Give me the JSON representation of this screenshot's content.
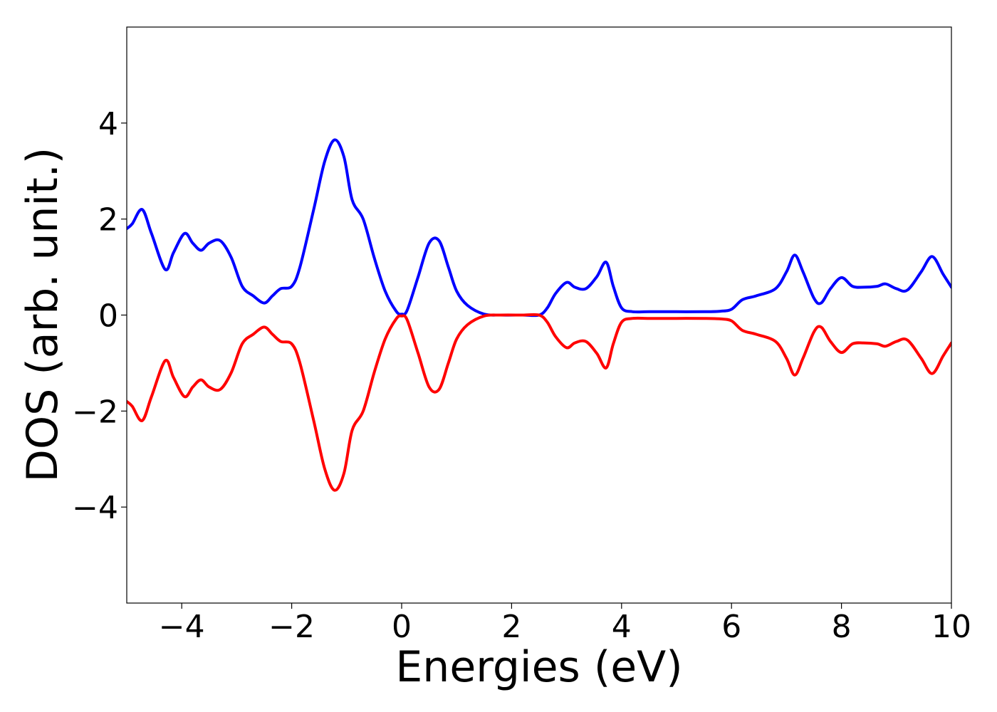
{
  "chart_data": {
    "type": "line",
    "title": "",
    "xlabel": "Energies (eV)",
    "ylabel": "DOS (arb. unit.)",
    "xlim": [
      -5,
      10
    ],
    "ylim": [
      -6,
      6
    ],
    "xticks": [
      -4,
      -2,
      0,
      2,
      4,
      6,
      8,
      10
    ],
    "xtick_labels": [
      "−4",
      "−2",
      "0",
      "2",
      "4",
      "6",
      "8",
      "10"
    ],
    "yticks": [
      -4,
      -2,
      0,
      2,
      4
    ],
    "ytick_labels": [
      "−4",
      "−2",
      "0",
      "2",
      "4"
    ],
    "grid": false,
    "legend": "none",
    "series": [
      {
        "color": "#0000ff",
        "x": [
          -5.0,
          -4.9,
          -4.72,
          -4.55,
          -4.3,
          -4.15,
          -3.95,
          -3.8,
          -3.65,
          -3.5,
          -3.3,
          -3.1,
          -2.9,
          -2.7,
          -2.5,
          -2.35,
          -2.2,
          -2.0,
          -1.85,
          -1.6,
          -1.4,
          -1.22,
          -1.05,
          -0.9,
          -0.7,
          -0.5,
          -0.3,
          -0.1,
          0.0,
          0.1,
          0.3,
          0.5,
          0.68,
          0.85,
          1.0,
          1.2,
          1.5,
          1.8,
          2.2,
          2.5,
          2.65,
          2.8,
          3.0,
          3.15,
          3.35,
          3.55,
          3.72,
          3.85,
          4.0,
          4.2,
          4.5,
          5.0,
          5.5,
          5.8,
          6.0,
          6.2,
          6.45,
          6.8,
          7.0,
          7.15,
          7.3,
          7.5,
          7.63,
          7.8,
          8.0,
          8.2,
          8.4,
          8.65,
          8.8,
          9.0,
          9.2,
          9.45,
          9.65,
          9.85,
          10.0
        ],
        "values": [
          1.8,
          1.9,
          2.2,
          1.7,
          0.95,
          1.3,
          1.7,
          1.5,
          1.35,
          1.5,
          1.55,
          1.2,
          0.6,
          0.4,
          0.25,
          0.4,
          0.55,
          0.6,
          1.0,
          2.2,
          3.2,
          3.65,
          3.3,
          2.4,
          2.0,
          1.2,
          0.5,
          0.08,
          0.02,
          0.1,
          0.8,
          1.5,
          1.55,
          1.0,
          0.5,
          0.2,
          0.02,
          0.0,
          0.0,
          0.0,
          0.15,
          0.45,
          0.68,
          0.58,
          0.55,
          0.8,
          1.1,
          0.6,
          0.15,
          0.07,
          0.07,
          0.07,
          0.07,
          0.08,
          0.12,
          0.32,
          0.4,
          0.55,
          0.9,
          1.25,
          0.9,
          0.35,
          0.25,
          0.55,
          0.78,
          0.6,
          0.58,
          0.6,
          0.65,
          0.55,
          0.52,
          0.9,
          1.22,
          0.85,
          0.58
        ]
      },
      {
        "color": "#ff0000",
        "x": [
          -5.0,
          -4.9,
          -4.72,
          -4.55,
          -4.3,
          -4.15,
          -3.95,
          -3.8,
          -3.65,
          -3.5,
          -3.3,
          -3.1,
          -2.9,
          -2.7,
          -2.5,
          -2.35,
          -2.2,
          -2.0,
          -1.85,
          -1.6,
          -1.4,
          -1.22,
          -1.05,
          -0.9,
          -0.7,
          -0.5,
          -0.3,
          -0.1,
          0.0,
          0.1,
          0.3,
          0.5,
          0.68,
          0.85,
          1.0,
          1.2,
          1.5,
          1.8,
          2.2,
          2.5,
          2.65,
          2.8,
          3.0,
          3.15,
          3.35,
          3.55,
          3.72,
          3.85,
          4.0,
          4.2,
          4.5,
          5.0,
          5.5,
          5.8,
          6.0,
          6.2,
          6.45,
          6.8,
          7.0,
          7.15,
          7.3,
          7.5,
          7.63,
          7.8,
          8.0,
          8.2,
          8.4,
          8.65,
          8.8,
          9.0,
          9.2,
          9.45,
          9.65,
          9.85,
          10.0
        ],
        "values": [
          -1.8,
          -1.9,
          -2.2,
          -1.7,
          -0.95,
          -1.3,
          -1.7,
          -1.5,
          -1.35,
          -1.5,
          -1.55,
          -1.2,
          -0.6,
          -0.4,
          -0.25,
          -0.4,
          -0.55,
          -0.6,
          -1.0,
          -2.2,
          -3.2,
          -3.65,
          -3.3,
          -2.4,
          -2.0,
          -1.2,
          -0.5,
          -0.08,
          -0.02,
          -0.1,
          -0.8,
          -1.5,
          -1.55,
          -1.0,
          -0.5,
          -0.2,
          -0.02,
          0.0,
          0.0,
          0.0,
          -0.15,
          -0.45,
          -0.68,
          -0.58,
          -0.55,
          -0.8,
          -1.1,
          -0.6,
          -0.15,
          -0.07,
          -0.07,
          -0.07,
          -0.07,
          -0.08,
          -0.12,
          -0.32,
          -0.4,
          -0.55,
          -0.9,
          -1.25,
          -0.9,
          -0.35,
          -0.25,
          -0.55,
          -0.78,
          -0.6,
          -0.58,
          -0.6,
          -0.65,
          -0.55,
          -0.52,
          -0.9,
          -1.22,
          -0.85,
          -0.58
        ]
      }
    ]
  }
}
